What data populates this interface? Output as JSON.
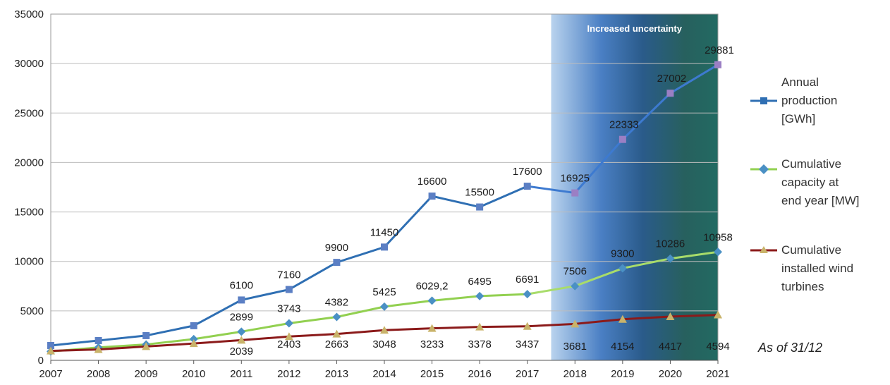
{
  "chart_data": {
    "type": "line",
    "x": [
      2007,
      2008,
      2009,
      2010,
      2011,
      2012,
      2013,
      2014,
      2015,
      2016,
      2017,
      2018,
      2019,
      2020,
      2021
    ],
    "ylim": [
      0,
      35000
    ],
    "yticks": [
      0,
      5000,
      10000,
      15000,
      20000,
      25000,
      30000,
      35000
    ],
    "grid": true,
    "legend_position": "right",
    "annotation_band": {
      "label": "Increased uncertainty",
      "from": 2017.5,
      "to": 2021
    },
    "note": "As of 31/12",
    "series": [
      {
        "name": "Annual production [GWh]",
        "color": "#2f6fb3",
        "marker": "square",
        "values": [
          1500,
          2000,
          2500,
          3500,
          6100,
          7160,
          9900,
          11450,
          16600,
          15500,
          17600,
          16925,
          22333,
          27002,
          29881
        ],
        "labels": [
          "",
          "",
          "",
          "",
          "6100",
          "7160",
          "9900",
          "11450",
          "16600",
          "15500",
          "17600",
          "16925",
          "22333",
          "27002",
          "29881"
        ]
      },
      {
        "name": "Cumulative capacity at end year [MW]",
        "color": "#92d050",
        "marker": "diamond",
        "values": [
          900,
          1300,
          1600,
          2150,
          2899,
          3743,
          4382,
          5425,
          6029.2,
          6495,
          6691,
          7506,
          9300,
          10286,
          10958
        ],
        "labels": [
          "",
          "",
          "",
          "",
          "2899",
          "3743",
          "4382",
          "5425",
          "6029,2",
          "6495",
          "6691",
          "7506",
          "9300",
          "10286",
          "10958"
        ]
      },
      {
        "name": "Cumulative installed wind turbines",
        "color": "#8b1a1a",
        "marker": "triangle",
        "values": [
          950,
          1100,
          1400,
          1700,
          2039,
          2403,
          2663,
          3048,
          3233,
          3378,
          3437,
          3681,
          4154,
          4417,
          4594
        ],
        "labels": [
          "",
          "",
          "",
          "",
          "2039",
          "2403",
          "2663",
          "3048",
          "3233",
          "3378",
          "3437",
          "3681",
          "4154",
          "4417",
          "4594"
        ]
      }
    ]
  },
  "legend": {
    "production": [
      "Annual",
      "production",
      "[GWh]"
    ],
    "capacity": [
      "Cumulative",
      "capacity at",
      "end year [MW]"
    ],
    "turbines": [
      "Cumulative",
      "installed wind",
      "turbines"
    ]
  }
}
